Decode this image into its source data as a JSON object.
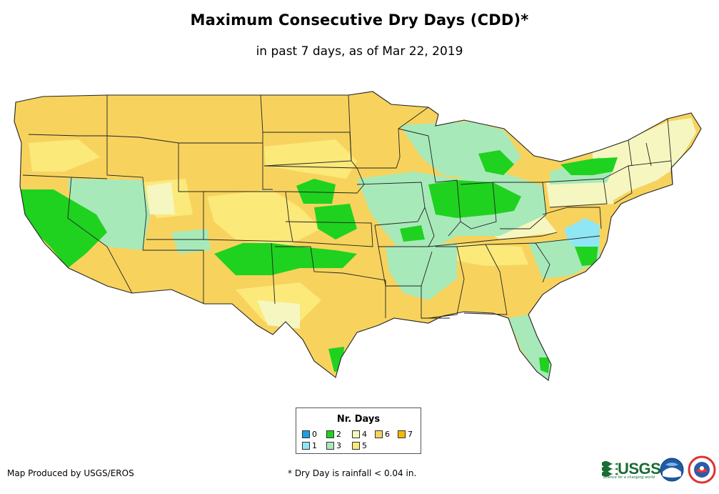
{
  "header": {
    "title": "Maximum Consecutive Dry Days (CDD)*",
    "subtitle": "in past 7 days, as of Mar 22, 2019"
  },
  "legend": {
    "title": "Nr. Days",
    "items": [
      {
        "label": "0",
        "color": "#1e9ee6"
      },
      {
        "label": "1",
        "color": "#8fe6f5"
      },
      {
        "label": "2",
        "color": "#1fd21f"
      },
      {
        "label": "3",
        "color": "#a8e9b9"
      },
      {
        "label": "4",
        "color": "#f6f6c0"
      },
      {
        "label": "5",
        "color": "#fbe97a"
      },
      {
        "label": "6",
        "color": "#f7d35e"
      },
      {
        "label": "7",
        "color": "#f5b800"
      }
    ]
  },
  "footer": {
    "credit": "Map Produced by USGS/EROS",
    "note": "* Dry Day is rainfall < 0.04 in.",
    "usgs_logo_text": "USGS",
    "usgs_tagline": "science for a changing world"
  },
  "map_colors": {
    "base": "#f7d35e",
    "light": "#fbe97a",
    "pale": "#f6f6c0",
    "mint": "#a8e9b9",
    "green": "#1fd21f",
    "cyan": "#8fe6f5",
    "border": "#222222"
  }
}
